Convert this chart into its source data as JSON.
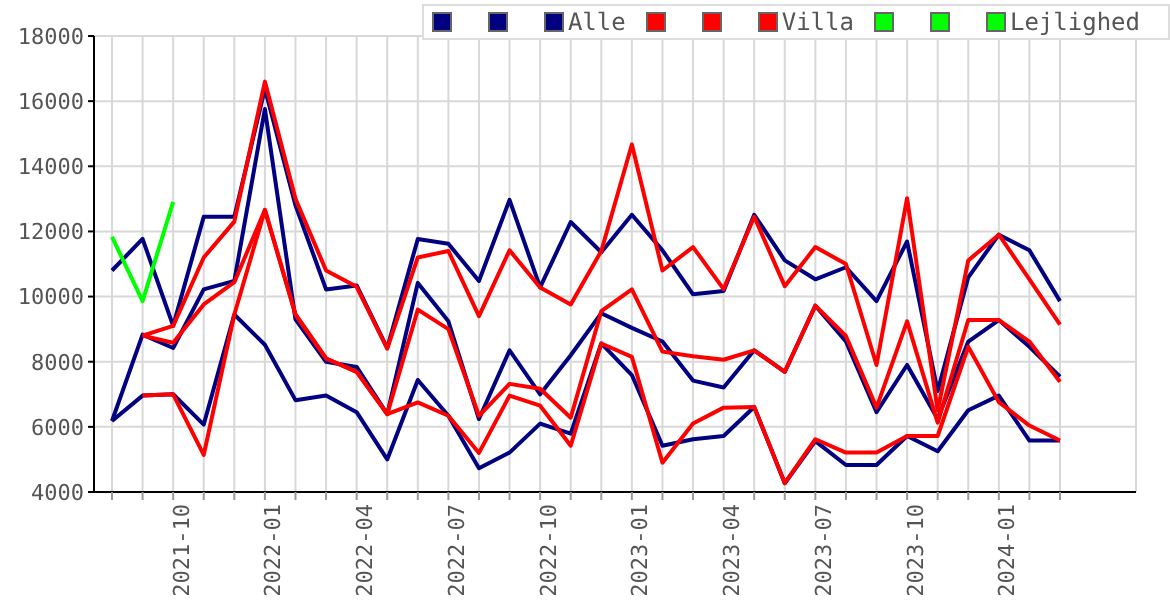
{
  "chart_data": {
    "type": "line",
    "categories": [
      null,
      null,
      "2021-10",
      null,
      null,
      "2022-01",
      null,
      null,
      "2022-04",
      null,
      null,
      "2022-07",
      null,
      null,
      "2022-10",
      null,
      null,
      "2023-01",
      null,
      null,
      "2023-04",
      null,
      null,
      "2023-07",
      null,
      null,
      "2023-10",
      null,
      null,
      "2024-01",
      null,
      null
    ],
    "series": [
      {
        "color": "#000080",
        "values": [
          6180,
          6960,
          7000,
          6070,
          9450,
          8520,
          6820,
          6960,
          6450,
          5000,
          7440,
          6340,
          4730,
          5210,
          6100,
          5790,
          8560,
          7590,
          5420,
          5620,
          5720,
          6610,
          4270,
          5560,
          4830,
          4830,
          5720,
          5250,
          6510,
          6960,
          5580,
          5580
        ]
      },
      {
        "color": "#000080",
        "values": [
          6180,
          8830,
          8420,
          10220,
          10480,
          15760,
          9300,
          8000,
          7840,
          6390,
          10420,
          9240,
          6240,
          8350,
          7000,
          8200,
          9490,
          9040,
          8620,
          7420,
          7210,
          8350,
          7690,
          9720,
          8620,
          6450,
          7900,
          6240,
          8620,
          9280,
          8460,
          7540
        ]
      },
      {
        "name": "Alle",
        "color": "#000080",
        "values": [
          10800,
          11770,
          9100,
          12450,
          12450,
          16380,
          12800,
          10220,
          10340,
          8420,
          11770,
          11620,
          10480,
          12970,
          10280,
          12290,
          11360,
          12510,
          11420,
          10070,
          10170,
          12510,
          11110,
          10530,
          10900,
          9860,
          11690,
          7100,
          10590,
          11900,
          11420,
          9860
        ]
      },
      {
        "color": "#ff0000",
        "values": [
          null,
          6960,
          7000,
          5140,
          9450,
          12660,
          9450,
          8100,
          7690,
          6390,
          6750,
          6340,
          5200,
          6960,
          6650,
          5420,
          8560,
          8150,
          4900,
          6100,
          6590,
          6610,
          4270,
          5620,
          5210,
          5210,
          5720,
          5720,
          8460,
          6760,
          6040,
          5580
        ]
      },
      {
        "color": "#ff0000",
        "values": [
          null,
          8800,
          8580,
          9760,
          10440,
          12660,
          9450,
          8100,
          7690,
          6390,
          9600,
          9000,
          6340,
          7320,
          7170,
          6280,
          9550,
          10220,
          8310,
          8170,
          8060,
          8350,
          7690,
          9720,
          8790,
          6590,
          9240,
          6130,
          9280,
          9280,
          8620,
          7380
        ]
      },
      {
        "name": "Villa",
        "color": "#ff0000",
        "values": [
          null,
          8800,
          9100,
          11200,
          12300,
          16600,
          13000,
          10800,
          10300,
          8400,
          11200,
          11400,
          9400,
          11420,
          10280,
          9760,
          11400,
          14670,
          10800,
          11520,
          10230,
          12450,
          10320,
          11520,
          11000,
          7900,
          13020,
          6500,
          11110,
          11900,
          10530,
          9140
        ]
      },
      {
        "color": "#00ff00",
        "values": [
          null,
          null,
          null,
          null,
          null,
          null,
          null,
          null,
          null,
          null,
          null,
          null,
          null,
          null,
          null,
          null,
          null,
          null,
          null,
          null,
          null,
          null,
          null,
          null,
          null,
          null,
          null,
          null,
          null,
          null,
          null,
          null
        ]
      },
      {
        "color": "#00ff00",
        "values": [
          null,
          null,
          null,
          null,
          null,
          null,
          null,
          null,
          null,
          null,
          null,
          null,
          null,
          null,
          null,
          null,
          null,
          null,
          null,
          null,
          null,
          null,
          null,
          null,
          null,
          null,
          null,
          null,
          null,
          null,
          null,
          null
        ]
      },
      {
        "name": "Lejlighed",
        "color": "#00ff00",
        "values": [
          11830,
          9860,
          12910,
          null,
          null,
          null,
          null,
          null,
          null,
          null,
          null,
          null,
          null,
          null,
          null,
          null,
          null,
          null,
          null,
          null,
          null,
          null,
          null,
          null,
          null,
          null,
          null,
          null,
          null,
          null,
          null,
          null
        ]
      }
    ],
    "ylim": [
      4000,
      18000
    ],
    "yticks": [
      4000,
      6000,
      8000,
      10000,
      12000,
      14000,
      16000,
      18000
    ],
    "grid": true,
    "legend": "top right",
    "marker": "none",
    "line_style": "solid"
  }
}
